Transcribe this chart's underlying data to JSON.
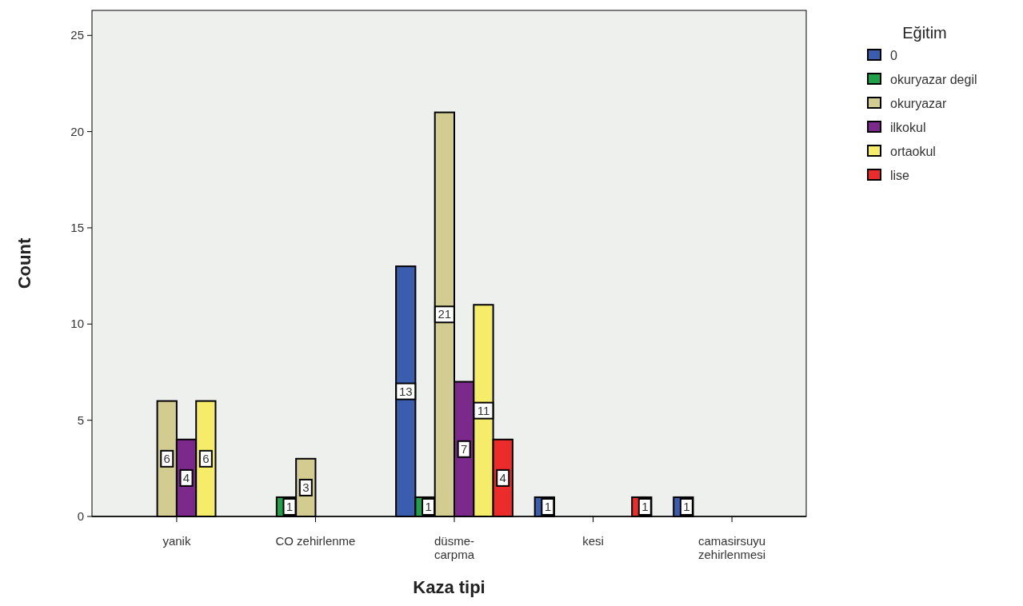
{
  "chart_data": {
    "type": "bar",
    "xlabel": "Kaza tipi",
    "ylabel": "Count",
    "legend_title": "Eğitim",
    "categories": [
      "yanik",
      "CO zehirlenme",
      "düsme-\ncarpma",
      "kesi",
      "camasirsuyu\nzehirlenmesi"
    ],
    "series": [
      {
        "name": "0",
        "color": "#3a5dae",
        "values": [
          null,
          null,
          13,
          1,
          1
        ]
      },
      {
        "name": "okuryazar degil",
        "color": "#21a04a",
        "values": [
          null,
          1,
          1,
          null,
          null
        ]
      },
      {
        "name": "okuryazar",
        "color": "#d2cc90",
        "values": [
          6,
          3,
          21,
          null,
          null
        ]
      },
      {
        "name": "ilkokul",
        "color": "#7b2a8c",
        "values": [
          4,
          null,
          7,
          null,
          null
        ]
      },
      {
        "name": "ortaokul",
        "color": "#f5ec6a",
        "values": [
          6,
          null,
          11,
          null,
          null
        ]
      },
      {
        "name": "lise",
        "color": "#ec2b2b",
        "values": [
          null,
          null,
          4,
          1,
          null
        ]
      }
    ],
    "ylim": [
      0,
      26.3
    ],
    "yticks": [
      0,
      5,
      10,
      15,
      20,
      25
    ],
    "data_labels": true,
    "legend": "top right",
    "grid": false
  }
}
